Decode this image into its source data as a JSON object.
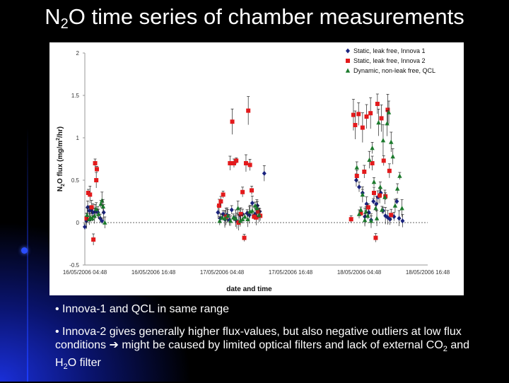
{
  "slide": {
    "title_pre": "N",
    "title_sub": "2",
    "title_post": "O time series of chamber measurements"
  },
  "bullets": [
    {
      "text": "• Innova-1 and QCL in same range"
    },
    {
      "text_a": "• Innova-2 gives generally higher flux-values, but also negative outliers at low flux conditions ",
      "arrow": "➔",
      "text_b": " might be caused by limited optical filters and lack of external CO",
      "sub1": "2",
      "text_c": " and H",
      "sub2": "2",
      "text_d": "O filter"
    }
  ],
  "chart_data": {
    "type": "scatter",
    "xlabel": "date and time",
    "ylabel_pre": "N",
    "ylabel_sub": "2",
    "ylabel_mid": "O flux (mg/m",
    "ylabel_sup": "2",
    "ylabel_post": "/hr)",
    "x_ticks": [
      "16/05/2006 04:48",
      "16/05/2006 16:48",
      "17/05/2006 04:48",
      "17/05/2006 16:48",
      "18/05/2006 04:48",
      "18/05/2006 16:48"
    ],
    "x_range_hours": [
      0,
      60
    ],
    "y_ticks": [
      "2",
      "1.5",
      "1",
      "0.5",
      "0",
      "-0.5"
    ],
    "ylim": [
      -0.5,
      2
    ],
    "grid": false,
    "legend_position": "top-right",
    "series": [
      {
        "name": "Static, leak free, Innova 1",
        "marker": "diamond",
        "color": "#1a237e",
        "points": [
          [
            0.0,
            -0.05
          ],
          [
            0.3,
            0.02
          ],
          [
            0.5,
            0.18
          ],
          [
            0.8,
            0.14
          ],
          [
            1.1,
            0.15
          ],
          [
            1.4,
            0.12
          ],
          [
            1.8,
            0.13
          ],
          [
            2.3,
            0.12
          ],
          [
            2.7,
            0.05
          ],
          [
            3.0,
            0.02
          ],
          [
            3.3,
            0.12
          ],
          [
            23.3,
            0.12
          ],
          [
            23.7,
            0.05
          ],
          [
            24.2,
            0.1
          ],
          [
            24.5,
            0.04
          ],
          [
            24.9,
            0.09
          ],
          [
            25.3,
            0.03
          ],
          [
            25.7,
            0.15
          ],
          [
            26.2,
            0.05
          ],
          [
            26.6,
            0.02
          ],
          [
            27.1,
            0.09
          ],
          [
            27.6,
            0.1
          ],
          [
            28.4,
            0.11
          ],
          [
            28.8,
            0.09
          ],
          [
            29.3,
            0.23
          ],
          [
            29.8,
            0.1
          ],
          [
            30.2,
            0.2
          ],
          [
            30.6,
            0.13
          ],
          [
            31.4,
            0.58
          ],
          [
            47.5,
            0.5
          ],
          [
            48.0,
            0.42
          ],
          [
            48.6,
            0.35
          ],
          [
            49.0,
            0.07
          ],
          [
            49.3,
            0.22
          ],
          [
            49.7,
            0.12
          ],
          [
            50.1,
            0.03
          ],
          [
            50.5,
            0.25
          ],
          [
            51.0,
            0.22
          ],
          [
            51.3,
            0.3
          ],
          [
            51.8,
            0.35
          ],
          [
            52.2,
            0.14
          ],
          [
            52.6,
            0.08
          ],
          [
            53.0,
            0.06
          ],
          [
            53.4,
            0.04
          ],
          [
            54.1,
            0.07
          ],
          [
            54.6,
            0.25
          ],
          [
            55.0,
            0.05
          ],
          [
            55.6,
            0.02
          ]
        ]
      },
      {
        "name": "Static, leak free, Innova 2",
        "marker": "square",
        "color": "#e31a1c",
        "points": [
          [
            0.3,
            0.05
          ],
          [
            0.6,
            0.35
          ],
          [
            0.9,
            0.33
          ],
          [
            1.2,
            0.18
          ],
          [
            1.5,
            -0.2
          ],
          [
            1.8,
            0.7
          ],
          [
            2.1,
            0.63
          ],
          [
            2.0,
            0.5
          ],
          [
            23.5,
            0.2
          ],
          [
            23.8,
            0.25
          ],
          [
            24.2,
            0.33
          ],
          [
            24.7,
            0.07
          ],
          [
            25.4,
            0.7
          ],
          [
            25.8,
            1.19
          ],
          [
            26.1,
            0.7
          ],
          [
            26.5,
            0.73
          ],
          [
            26.9,
            0.0
          ],
          [
            27.3,
            0.1
          ],
          [
            27.6,
            0.36
          ],
          [
            27.9,
            -0.18
          ],
          [
            28.2,
            0.7
          ],
          [
            28.6,
            1.32
          ],
          [
            28.9,
            0.68
          ],
          [
            29.2,
            0.38
          ],
          [
            29.6,
            0.07
          ],
          [
            30.0,
            0.06
          ],
          [
            30.3,
            0.13
          ],
          [
            30.7,
            0.08
          ],
          [
            46.6,
            0.04
          ],
          [
            47.0,
            1.27
          ],
          [
            47.3,
            1.15
          ],
          [
            47.6,
            0.55
          ],
          [
            47.9,
            1.28
          ],
          [
            48.3,
            0.11
          ],
          [
            48.6,
            1.12
          ],
          [
            48.9,
            0.6
          ],
          [
            49.3,
            1.25
          ],
          [
            49.6,
            0.18
          ],
          [
            50.0,
            1.29
          ],
          [
            50.3,
            0.7
          ],
          [
            50.6,
            0.35
          ],
          [
            50.9,
            -0.18
          ],
          [
            51.2,
            1.4
          ],
          [
            51.6,
            0.32
          ],
          [
            51.9,
            1.23
          ],
          [
            52.3,
            0.73
          ],
          [
            52.6,
            0.31
          ],
          [
            53.0,
            1.33
          ],
          [
            53.3,
            0.61
          ],
          [
            53.6,
            0.09
          ]
        ]
      },
      {
        "name": "Dynamic, non-leak free, QCL",
        "marker": "triangle",
        "color": "#1b7a2c",
        "points": [
          [
            0.4,
            0.09
          ],
          [
            0.8,
            0.04
          ],
          [
            1.0,
            0.06
          ],
          [
            1.3,
            0.05
          ],
          [
            1.7,
            0.08
          ],
          [
            2.0,
            0.16
          ],
          [
            2.4,
            0.1
          ],
          [
            2.8,
            0.22
          ],
          [
            3.0,
            0.26
          ],
          [
            3.2,
            0.19
          ],
          [
            3.5,
            0.0
          ],
          [
            23.6,
            0.02
          ],
          [
            24.0,
            0.06
          ],
          [
            24.5,
            0.05
          ],
          [
            25.0,
            0.08
          ],
          [
            25.5,
            0.02
          ],
          [
            26.0,
            0.06
          ],
          [
            26.4,
            0.05
          ],
          [
            26.8,
            0.17
          ],
          [
            27.2,
            0.02
          ],
          [
            27.6,
            0.04
          ],
          [
            28.0,
            0.07
          ],
          [
            28.5,
            0.04
          ],
          [
            28.9,
            0.13
          ],
          [
            29.3,
            0.14
          ],
          [
            29.8,
            0.2
          ],
          [
            30.1,
            0.17
          ],
          [
            30.5,
            0.09
          ],
          [
            47.6,
            0.65
          ],
          [
            48.0,
            0.1
          ],
          [
            48.3,
            0.15
          ],
          [
            48.6,
            0.33
          ],
          [
            49.0,
            0.03
          ],
          [
            49.2,
            0.13
          ],
          [
            49.5,
            0.08
          ],
          [
            49.8,
            0.74
          ],
          [
            50.1,
            0.02
          ],
          [
            50.3,
            0.88
          ],
          [
            50.6,
            0.48
          ],
          [
            50.9,
            0.17
          ],
          [
            51.1,
            0.05
          ],
          [
            51.4,
            1.18
          ],
          [
            51.7,
            0.42
          ],
          [
            52.0,
            0.15
          ],
          [
            52.2,
            0.97
          ],
          [
            52.5,
            0.3
          ],
          [
            52.9,
            1.17
          ],
          [
            53.2,
            1.3
          ],
          [
            53.6,
            0.95
          ],
          [
            53.9,
            0.78
          ],
          [
            54.3,
            0.2
          ],
          [
            54.7,
            0.4
          ],
          [
            55.1,
            0.55
          ],
          [
            55.5,
            0.17
          ]
        ]
      }
    ]
  }
}
